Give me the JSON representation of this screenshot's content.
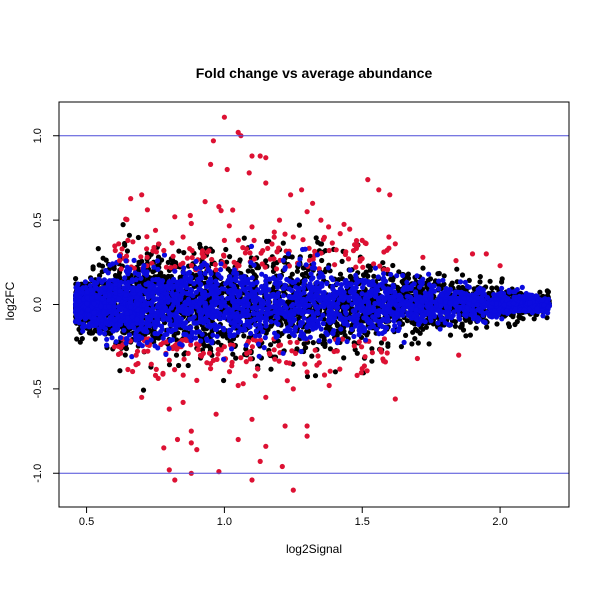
{
  "chart_data": {
    "type": "scatter",
    "title": "Fold change vs average abundance",
    "xlabel": "log2Signal",
    "ylabel": "log2FC",
    "xlim": [
      0.4,
      2.25
    ],
    "ylim": [
      -1.2,
      1.2
    ],
    "x_ticks": [
      0.5,
      1.0,
      1.5,
      2.0
    ],
    "x_tick_labels": [
      "0.5",
      "1.0",
      "1.5",
      "2.0"
    ],
    "y_ticks": [
      -1.0,
      -0.5,
      0.0,
      0.5,
      1.0
    ],
    "y_tick_labels": [
      "-1.0",
      "-0.5",
      "0.0",
      "0.5",
      "1.0"
    ],
    "hlines": [
      {
        "y": 1.0,
        "color": "#4b4bd8"
      },
      {
        "y": -1.0,
        "color": "#4b4bd8"
      }
    ],
    "grid": false,
    "legend": "none",
    "series_colors": {
      "black": "#000000",
      "red": "#dd1133",
      "blue": "#0b0bdf"
    },
    "density_note_series": [
      {
        "color": "black",
        "role": "all features (dense central band)"
      },
      {
        "color": "blue",
        "role": "low-variance features"
      },
      {
        "color": "red",
        "role": "outlying features"
      }
    ],
    "red_points": [
      [
        1.0,
        1.11
      ],
      [
        0.96,
        0.97
      ],
      [
        1.05,
        1.02
      ],
      [
        1.06,
        1.0
      ],
      [
        1.1,
        0.88
      ],
      [
        1.15,
        0.87
      ],
      [
        1.13,
        0.88
      ],
      [
        0.95,
        0.83
      ],
      [
        1.01,
        0.8
      ],
      [
        1.09,
        0.78
      ],
      [
        1.15,
        0.72
      ],
      [
        1.28,
        0.68
      ],
      [
        1.24,
        0.65
      ],
      [
        1.52,
        0.74
      ],
      [
        1.56,
        0.68
      ],
      [
        1.6,
        0.65
      ],
      [
        0.7,
        0.65
      ],
      [
        0.93,
        0.61
      ],
      [
        1.32,
        0.6
      ],
      [
        0.98,
        0.58
      ],
      [
        1.03,
        0.56
      ],
      [
        0.82,
        0.52
      ],
      [
        1.3,
        0.55
      ],
      [
        1.35,
        0.5
      ],
      [
        0.88,
        0.48
      ],
      [
        1.2,
        0.5
      ],
      [
        0.75,
        0.44
      ],
      [
        1.1,
        0.46
      ],
      [
        0.85,
        0.4
      ],
      [
        1.42,
        0.42
      ],
      [
        0.65,
        0.38
      ],
      [
        1.0,
        0.38
      ],
      [
        1.25,
        0.4
      ],
      [
        1.5,
        0.38
      ],
      [
        1.62,
        0.36
      ],
      [
        1.9,
        0.3
      ],
      [
        0.78,
        0.32
      ],
      [
        1.08,
        0.33
      ],
      [
        0.92,
        0.3
      ],
      [
        1.38,
        0.32
      ],
      [
        1.72,
        0.28
      ],
      [
        1.95,
        0.3
      ],
      [
        0.72,
        0.28
      ],
      [
        1.18,
        0.27
      ],
      [
        1.45,
        0.27
      ],
      [
        1.84,
        0.26
      ],
      [
        2.0,
        0.23
      ],
      [
        0.62,
        0.26
      ],
      [
        0.68,
        -0.3
      ],
      [
        0.8,
        -0.33
      ],
      [
        0.95,
        -0.35
      ],
      [
        1.12,
        -0.38
      ],
      [
        1.3,
        -0.4
      ],
      [
        1.5,
        -0.38
      ],
      [
        1.7,
        -0.32
      ],
      [
        1.85,
        -0.3
      ],
      [
        0.75,
        -0.42
      ],
      [
        0.9,
        -0.45
      ],
      [
        1.05,
        -0.48
      ],
      [
        1.25,
        -0.5
      ],
      [
        0.7,
        -0.55
      ],
      [
        0.85,
        -0.58
      ],
      [
        1.15,
        -0.55
      ],
      [
        1.38,
        -0.48
      ],
      [
        1.62,
        -0.56
      ],
      [
        0.8,
        -0.62
      ],
      [
        0.97,
        -0.65
      ],
      [
        1.1,
        -0.68
      ],
      [
        1.22,
        -0.72
      ],
      [
        0.88,
        -0.75
      ],
      [
        1.3,
        -0.72
      ],
      [
        1.3,
        -0.78
      ],
      [
        1.05,
        -0.8
      ],
      [
        0.83,
        -0.8
      ],
      [
        0.78,
        -0.85
      ],
      [
        0.88,
        -0.82
      ],
      [
        0.9,
        -0.86
      ],
      [
        1.15,
        -0.84
      ],
      [
        0.8,
        -0.98
      ],
      [
        0.88,
        -1.0
      ],
      [
        0.98,
        -0.99
      ],
      [
        1.13,
        -0.93
      ],
      [
        1.21,
        -0.96
      ],
      [
        0.82,
        -1.04
      ],
      [
        1.1,
        -1.04
      ],
      [
        1.25,
        -1.1
      ]
    ]
  }
}
